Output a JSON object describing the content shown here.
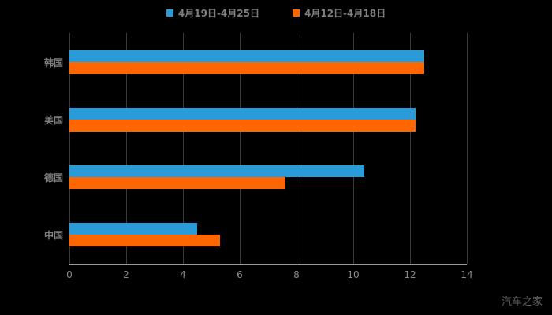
{
  "chart_data": {
    "type": "bar",
    "orientation": "horizontal",
    "title": "",
    "xlabel": "",
    "ylabel": "",
    "categories": [
      "韩国",
      "美国",
      "德国",
      "中国"
    ],
    "series": [
      {
        "name": "4月19日-4月25日",
        "color": "#2b9bd7",
        "values": [
          12.5,
          12.2,
          10.4,
          4.5
        ]
      },
      {
        "name": "4月12日-4月18日",
        "color": "#ff6600",
        "values": [
          12.5,
          12.2,
          7.6,
          5.3
        ]
      }
    ],
    "xlim": [
      0,
      14
    ],
    "xticks": [
      0,
      2,
      4,
      6,
      8,
      10,
      12,
      14
    ],
    "legend_position": "top",
    "grid": true,
    "background": "#000000"
  },
  "watermark": "汽车之家"
}
